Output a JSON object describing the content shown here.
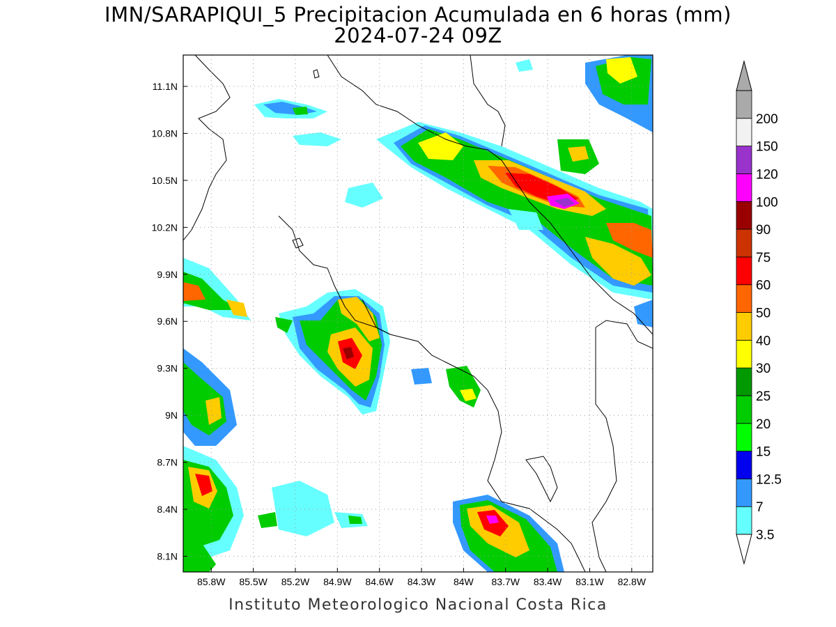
{
  "title": {
    "line1": "IMN/SARAPIQUI_5 Precipitacion Acumulada en 6 horas (mm)",
    "line2": "2024-07-24 09Z"
  },
  "credit": "Instituto Meteorologico Nacional Costa Rica",
  "map": {
    "lon_range": [
      -86.0,
      -82.65
    ],
    "lat_range": [
      8.0,
      11.3
    ],
    "lat_ticks": [
      {
        "value": 11.1,
        "label": "11.1N"
      },
      {
        "value": 10.8,
        "label": "10.8N"
      },
      {
        "value": 10.5,
        "label": "10.5N"
      },
      {
        "value": 10.2,
        "label": "10.2N"
      },
      {
        "value": 9.9,
        "label": "9.9N"
      },
      {
        "value": 9.6,
        "label": "9.6N"
      },
      {
        "value": 9.3,
        "label": "9.3N"
      },
      {
        "value": 9.0,
        "label": "9N"
      },
      {
        "value": 8.7,
        "label": "8.7N"
      },
      {
        "value": 8.4,
        "label": "8.4N"
      },
      {
        "value": 8.1,
        "label": "8.1N"
      }
    ],
    "lon_ticks": [
      {
        "value": -85.8,
        "label": "85.8W"
      },
      {
        "value": -85.5,
        "label": "85.5W"
      },
      {
        "value": -85.2,
        "label": "85.2W"
      },
      {
        "value": -84.9,
        "label": "84.9W"
      },
      {
        "value": -84.6,
        "label": "84.6W"
      },
      {
        "value": -84.3,
        "label": "84.3W"
      },
      {
        "value": -84.0,
        "label": "84W"
      },
      {
        "value": -83.7,
        "label": "83.7W"
      },
      {
        "value": -83.4,
        "label": "83.4W"
      },
      {
        "value": -83.1,
        "label": "83.1W"
      },
      {
        "value": -82.8,
        "label": "82.8W"
      }
    ],
    "grid": "dotted"
  },
  "colorbar": {
    "levels": [
      "3.5",
      "7",
      "12.5",
      "15",
      "20",
      "25",
      "30",
      "40",
      "50",
      "60",
      "75",
      "90",
      "100",
      "120",
      "150",
      "200"
    ],
    "colors": [
      "#66ffff",
      "#3399ff",
      "#0000ee",
      "#00ff00",
      "#00cc00",
      "#009900",
      "#ffff00",
      "#ffcc00",
      "#ff6600",
      "#ff0000",
      "#cc3300",
      "#990000",
      "#ff00ff",
      "#9933cc",
      "#f2f2f2",
      "#aaaaaa"
    ]
  }
}
